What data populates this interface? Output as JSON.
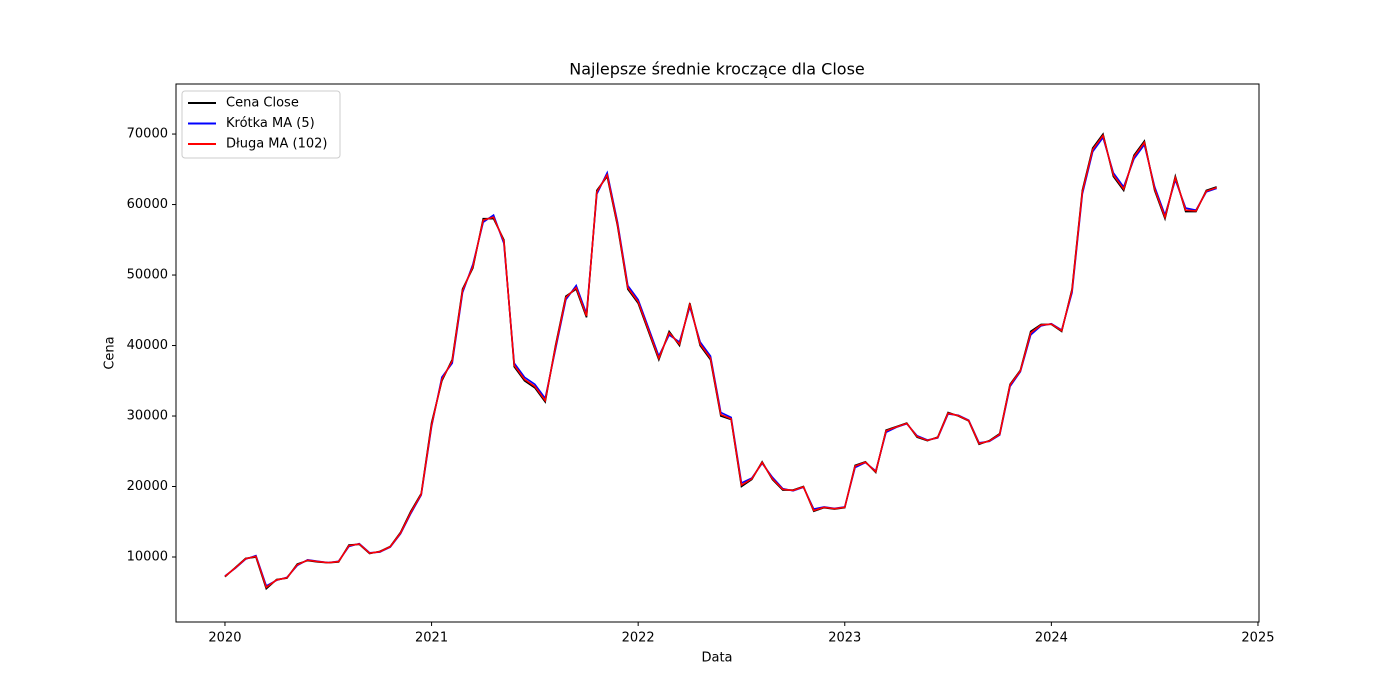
{
  "chart_data": {
    "type": "line",
    "title": "Najlepsze średnie kroczące dla Close",
    "xlabel": "Data",
    "ylabel": "Cena",
    "x": [
      2020.0,
      2020.05,
      2020.1,
      2020.15,
      2020.2,
      2020.25,
      2020.3,
      2020.35,
      2020.4,
      2020.45,
      2020.5,
      2020.55,
      2020.6,
      2020.65,
      2020.7,
      2020.75,
      2020.8,
      2020.85,
      2020.9,
      2020.95,
      2021.0,
      2021.05,
      2021.1,
      2021.15,
      2021.2,
      2021.25,
      2021.3,
      2021.35,
      2021.4,
      2021.45,
      2021.5,
      2021.55,
      2021.6,
      2021.65,
      2021.7,
      2021.75,
      2021.8,
      2021.85,
      2021.9,
      2021.95,
      2022.0,
      2022.05,
      2022.1,
      2022.15,
      2022.2,
      2022.25,
      2022.3,
      2022.35,
      2022.4,
      2022.45,
      2022.5,
      2022.55,
      2022.6,
      2022.65,
      2022.7,
      2022.75,
      2022.8,
      2022.85,
      2022.9,
      2022.95,
      2023.0,
      2023.05,
      2023.1,
      2023.15,
      2023.2,
      2023.25,
      2023.3,
      2023.35,
      2023.4,
      2023.45,
      2023.5,
      2023.55,
      2023.6,
      2023.65,
      2023.7,
      2023.75,
      2023.8,
      2023.85,
      2023.9,
      2023.95,
      2024.0,
      2024.05,
      2024.1,
      2024.15,
      2024.2,
      2024.25,
      2024.3,
      2024.35,
      2024.4,
      2024.45,
      2024.5,
      2024.55,
      2024.6,
      2024.65,
      2024.7,
      2024.75,
      2024.8
    ],
    "series": [
      {
        "name": "Cena Close",
        "color": "#000000",
        "values": [
          7200,
          8500,
          9800,
          10000,
          5500,
          6800,
          7000,
          9000,
          9500,
          9300,
          9200,
          9300,
          11700,
          11800,
          10500,
          10800,
          11500,
          13500,
          16500,
          19000,
          29000,
          35000,
          38000,
          48000,
          51000,
          58000,
          58000,
          55000,
          37000,
          35000,
          34000,
          32000,
          40000,
          47000,
          48000,
          44000,
          62000,
          64000,
          57000,
          48000,
          46000,
          42000,
          38000,
          42000,
          40000,
          46000,
          40000,
          38000,
          30000,
          29500,
          20000,
          21000,
          23500,
          21000,
          19500,
          19500,
          20000,
          16500,
          17000,
          16800,
          17000,
          23000,
          23500,
          22000,
          28000,
          28500,
          29000,
          27000,
          26500,
          27000,
          30500,
          30000,
          29300,
          26000,
          26500,
          27500,
          34500,
          36500,
          42000,
          43000,
          43000,
          42000,
          48000,
          62000,
          68000,
          70000,
          64000,
          62000,
          67000,
          69000,
          62000,
          58000,
          64000,
          59000,
          59000,
          62000,
          62500
        ]
      },
      {
        "name": "Krótka MA (5)",
        "color": "#0000ff",
        "values": [
          7300,
          8400,
          9700,
          10200,
          5900,
          6700,
          7100,
          8800,
          9600,
          9400,
          9200,
          9400,
          11500,
          11900,
          10600,
          10700,
          11400,
          13300,
          16200,
          18800,
          28500,
          35500,
          37500,
          47500,
          51500,
          57500,
          58500,
          54500,
          37500,
          35500,
          34500,
          32500,
          39500,
          46500,
          48500,
          44500,
          61500,
          64500,
          57500,
          48500,
          46500,
          42500,
          38500,
          41500,
          40500,
          45500,
          40500,
          38500,
          30500,
          29800,
          20500,
          21200,
          23300,
          21300,
          19700,
          19400,
          19900,
          16800,
          17100,
          16900,
          17100,
          22700,
          23400,
          22200,
          27700,
          28400,
          28900,
          27200,
          26600,
          26900,
          30300,
          30100,
          29400,
          26200,
          26400,
          27300,
          34200,
          36300,
          41500,
          42800,
          43100,
          42200,
          47500,
          61500,
          67500,
          69500,
          64500,
          62500,
          66500,
          68500,
          62500,
          58500,
          63500,
          59500,
          59200,
          61800,
          62300
        ]
      },
      {
        "name": "Długa MA (102)",
        "color": "#ff0000",
        "values": [
          7250,
          8450,
          9750,
          10100,
          5700,
          6750,
          7050,
          8900,
          9550,
          9350,
          9200,
          9350,
          11600,
          11850,
          10550,
          10750,
          11450,
          13400,
          16350,
          18900,
          28700,
          35200,
          37800,
          47800,
          51200,
          57800,
          58200,
          54800,
          37200,
          35200,
          34200,
          32200,
          39800,
          46800,
          48200,
          44200,
          61800,
          64200,
          57200,
          48200,
          46200,
          42200,
          38200,
          41800,
          40200,
          45800,
          40200,
          38200,
          30200,
          29600,
          20200,
          21100,
          23400,
          21100,
          19600,
          19450,
          19950,
          16600,
          17050,
          16850,
          17050,
          22900,
          23450,
          22100,
          27900,
          28450,
          28950,
          27100,
          26550,
          26950,
          30400,
          30050,
          29350,
          26100,
          26450,
          27400,
          34400,
          36400,
          41800,
          42900,
          43050,
          42100,
          47800,
          61800,
          67800,
          69800,
          64200,
          62200,
          66800,
          68800,
          62200,
          58200,
          63800,
          59200,
          59100,
          61900,
          62400
        ]
      }
    ],
    "xlim": [
      2019.763,
      2025.005
    ],
    "xticks": [
      2020,
      2021,
      2022,
      2023,
      2024,
      2025
    ],
    "ylim": [
      780,
      77100
    ],
    "yticks": [
      10000,
      20000,
      30000,
      40000,
      50000,
      60000,
      70000
    ],
    "legend": "upper left",
    "grid": false
  }
}
